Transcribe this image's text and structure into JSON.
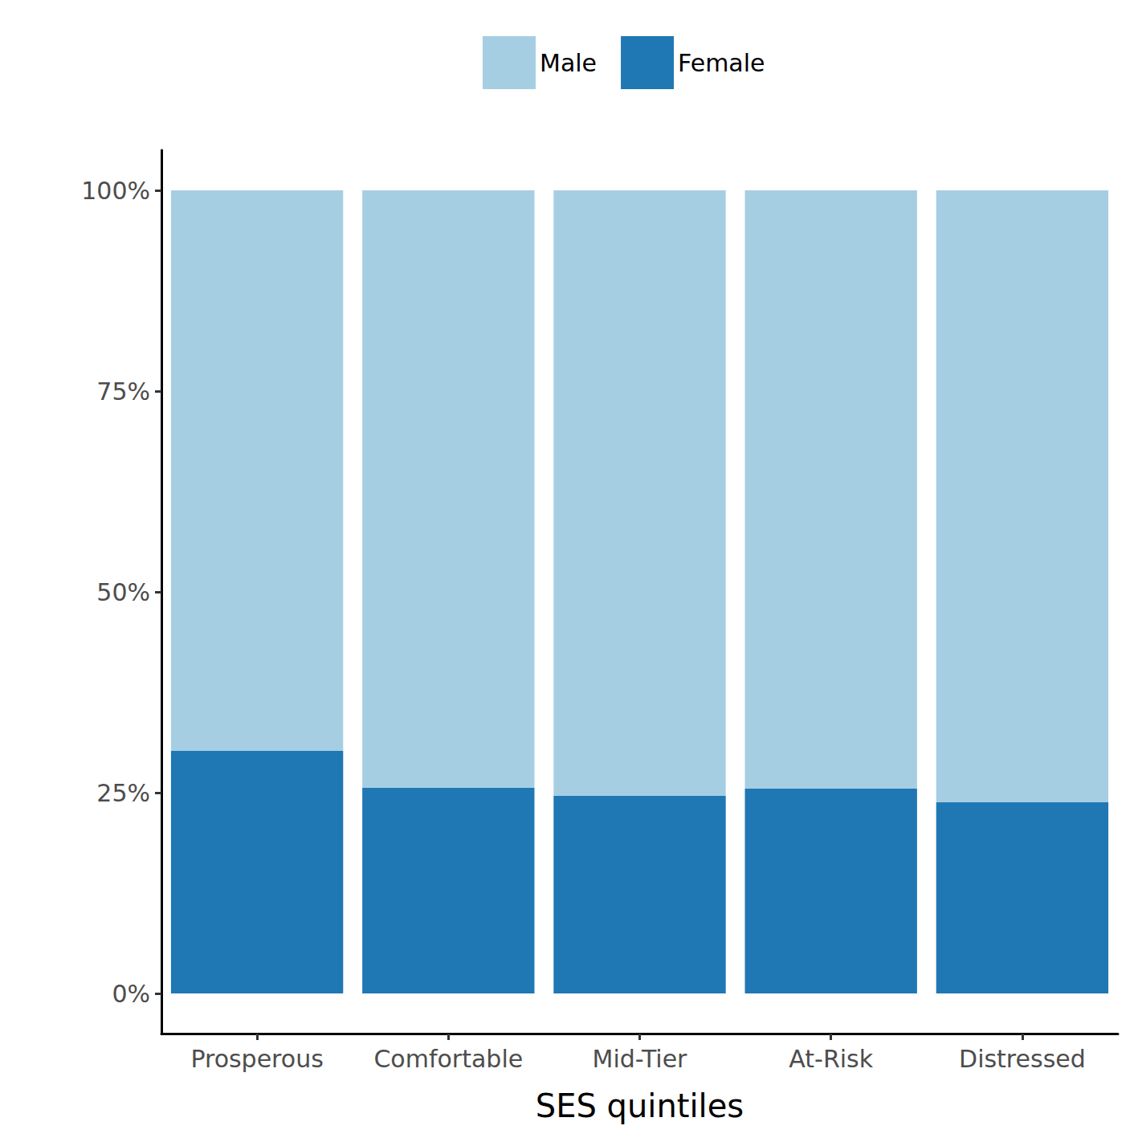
{
  "chart_data": {
    "type": "bar",
    "x_label": "SES quintiles",
    "categories": [
      "Prosperous",
      "Comfortable",
      "Mid-Tier",
      "At-Risk",
      "Distressed"
    ],
    "series": [
      {
        "name": "Male",
        "color": "#a6cee3",
        "values": [
          69.8,
          74.4,
          75.4,
          74.5,
          76.2
        ]
      },
      {
        "name": "Female",
        "color": "#1f78b4",
        "values": [
          30.2,
          25.6,
          24.6,
          25.5,
          23.8
        ]
      }
    ],
    "ylim": [
      -5,
      105
    ],
    "yticks": [
      {
        "value": 0,
        "label": "0%"
      },
      {
        "value": 25,
        "label": "25%"
      },
      {
        "value": 50,
        "label": "50%"
      },
      {
        "value": 75,
        "label": "75%"
      },
      {
        "value": 100,
        "label": "100%"
      }
    ],
    "stacked": true,
    "grid": false,
    "legend": "top"
  }
}
